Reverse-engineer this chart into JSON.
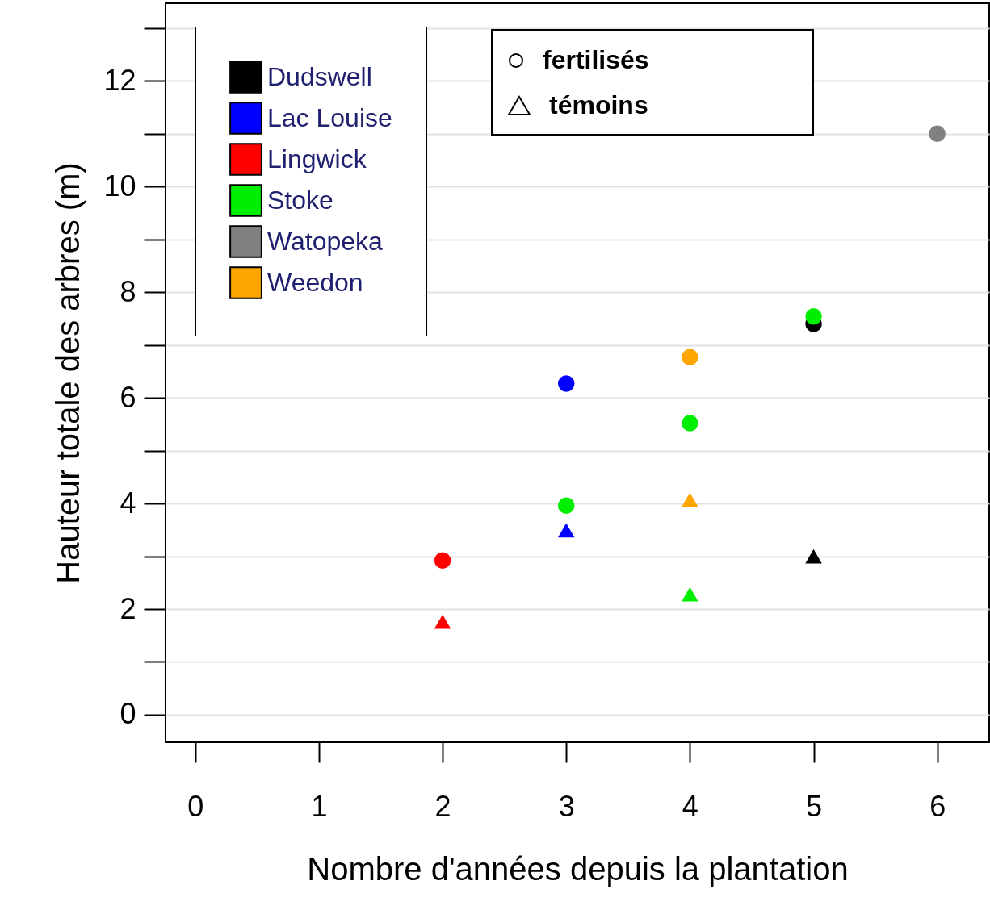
{
  "chart_data": {
    "type": "scatter",
    "xlabel": "Nombre d'années depuis la plantation",
    "ylabel": "Hauteur totale des arbres (m)",
    "xlim": [
      -0.24,
      6.42
    ],
    "ylim": [
      -0.52,
      13.47
    ],
    "xticks": [
      0,
      1,
      2,
      3,
      4,
      5,
      6
    ],
    "yticks": [
      0,
      {
        "value": 1,
        "label": null
      },
      2,
      {
        "value": 3,
        "label": null
      },
      4,
      {
        "value": 5,
        "label": null
      },
      6,
      {
        "value": 7,
        "label": null
      },
      8,
      {
        "value": 9,
        "label": null
      },
      10,
      {
        "value": 11,
        "label": null
      },
      12,
      {
        "value": 13,
        "label": null
      }
    ],
    "grid": "y",
    "legend": "top left",
    "annotations": [
      "fertilisés",
      "témoins"
    ],
    "series": [
      {
        "name": "Dudswell",
        "color": "#000000",
        "marker": "circle",
        "x": [
          5
        ],
        "values": [
          7.4
        ]
      },
      {
        "name": "Lac Louise",
        "color": "#0000ff",
        "marker": "circle",
        "x": [
          3
        ],
        "values": [
          6.27
        ]
      },
      {
        "name": "Lingwick",
        "color": "#ff0000",
        "marker": "circle",
        "x": [
          2
        ],
        "values": [
          2.92
        ]
      },
      {
        "name": "Stoke",
        "color": "#00ee00",
        "marker": "circle",
        "x": [
          3,
          4,
          5
        ],
        "values": [
          3.96,
          5.52,
          7.54
        ]
      },
      {
        "name": "Watopeka",
        "color": "#808080",
        "marker": "circle",
        "x": [
          6
        ],
        "values": [
          11.0
        ]
      },
      {
        "name": "Weedon",
        "color": "#ffa500",
        "marker": "circle",
        "x": [
          4
        ],
        "values": [
          6.77
        ]
      },
      {
        "color": "#000000",
        "marker": "triangle",
        "x": [
          5
        ],
        "values": [
          3.0
        ]
      },
      {
        "color": "#0000ff",
        "marker": "triangle",
        "x": [
          3
        ],
        "values": [
          3.49
        ]
      },
      {
        "color": "#ff0000",
        "marker": "triangle",
        "x": [
          2
        ],
        "values": [
          1.76
        ]
      },
      {
        "color": "#00ee00",
        "marker": "triangle",
        "x": [
          4
        ],
        "values": [
          2.28
        ]
      },
      {
        "color": "#ffa500",
        "marker": "triangle",
        "x": [
          4
        ],
        "values": [
          4.07
        ]
      }
    ]
  }
}
